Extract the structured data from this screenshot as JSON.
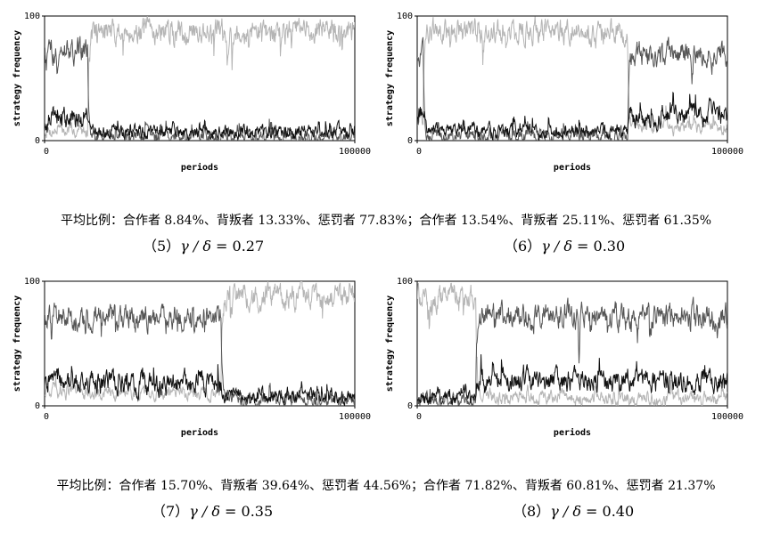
{
  "chart_data": [
    {
      "type": "line",
      "panel": "5",
      "ylabel": "strategy frequency",
      "xlabel": "periods",
      "xlim": [
        0,
        100000
      ],
      "ylim": [
        0,
        100
      ],
      "x_ticks": [
        "0",
        "100000"
      ],
      "y_ticks": [
        "0",
        "100"
      ],
      "series": [
        {
          "color": "#b4b4b4",
          "segments": [
            [
              0,
              14000,
              8
            ],
            [
              14000,
              100000,
              88
            ]
          ]
        },
        {
          "color": "#555555",
          "segments": [
            [
              0,
              14000,
              72
            ],
            [
              14000,
              100000,
              3
            ]
          ]
        },
        {
          "color": "#111111",
          "segments": [
            [
              0,
              14000,
              18
            ],
            [
              14000,
              100000,
              7
            ]
          ]
        }
      ]
    },
    {
      "type": "line",
      "panel": "6",
      "ylabel": "strategy frequency",
      "xlabel": "periods",
      "xlim": [
        0,
        100000
      ],
      "ylim": [
        0,
        100
      ],
      "x_ticks": [
        "0",
        "100000"
      ],
      "y_ticks": [
        "0",
        "100"
      ],
      "series": [
        {
          "color": "#b4b4b4",
          "segments": [
            [
              0,
              2000,
              20
            ],
            [
              2000,
              68000,
              87
            ],
            [
              68000,
              100000,
              10
            ]
          ]
        },
        {
          "color": "#555555",
          "segments": [
            [
              0,
              2000,
              70
            ],
            [
              2000,
              68000,
              4
            ],
            [
              68000,
              100000,
              70
            ]
          ]
        },
        {
          "color": "#111111",
          "segments": [
            [
              0,
              2000,
              20
            ],
            [
              2000,
              68000,
              8
            ],
            [
              68000,
              100000,
              20
            ]
          ]
        }
      ]
    },
    {
      "type": "line",
      "panel": "7",
      "ylabel": "strategy frequency",
      "xlabel": "periods",
      "xlim": [
        0,
        100000
      ],
      "ylim": [
        0,
        100
      ],
      "x_ticks": [
        "0",
        "100000"
      ],
      "y_ticks": [
        "0",
        "100"
      ],
      "series": [
        {
          "color": "#b4b4b4",
          "segments": [
            [
              0,
              57000,
              10
            ],
            [
              57000,
              100000,
              88
            ]
          ]
        },
        {
          "color": "#555555",
          "segments": [
            [
              0,
              57000,
              72
            ],
            [
              57000,
              100000,
              5
            ]
          ]
        },
        {
          "color": "#111111",
          "segments": [
            [
              0,
              57000,
              18
            ],
            [
              57000,
              100000,
              7
            ]
          ]
        }
      ]
    },
    {
      "type": "line",
      "panel": "8",
      "ylabel": "strategy frequency",
      "xlabel": "periods",
      "xlim": [
        0,
        100000
      ],
      "ylim": [
        0,
        100
      ],
      "x_ticks": [
        "0",
        "100000"
      ],
      "y_ticks": [
        "0",
        "100"
      ],
      "series": [
        {
          "color": "#b4b4b4",
          "segments": [
            [
              0,
              19000,
              88
            ],
            [
              19000,
              100000,
              6
            ]
          ]
        },
        {
          "color": "#555555",
          "segments": [
            [
              0,
              19000,
              5
            ],
            [
              19000,
              100000,
              72
            ]
          ]
        },
        {
          "color": "#111111",
          "segments": [
            [
              0,
              19000,
              7
            ],
            [
              19000,
              100000,
              20
            ]
          ]
        }
      ]
    }
  ],
  "summaries": [
    "平均比例：合作者 8.84%、背叛者 13.33%、惩罚者 77.83%；合作者 13.54%、背叛者 25.11%、惩罚者 61.35%",
    "平均比例：合作者 15.70%、背叛者 39.64%、惩罚者 44.56%；合作者 71.82%、背叛者 60.81%、惩罚者 21.37%"
  ],
  "captions": [
    {
      "num": "（5）",
      "expr": "γ / δ",
      "eq": " = 0.27"
    },
    {
      "num": "（6）",
      "expr": "γ / δ",
      "eq": " = 0.30"
    },
    {
      "num": "（7）",
      "expr": "γ / δ",
      "eq": " = 0.35"
    },
    {
      "num": "（8）",
      "expr": "γ / δ",
      "eq": " = 0.40"
    }
  ]
}
